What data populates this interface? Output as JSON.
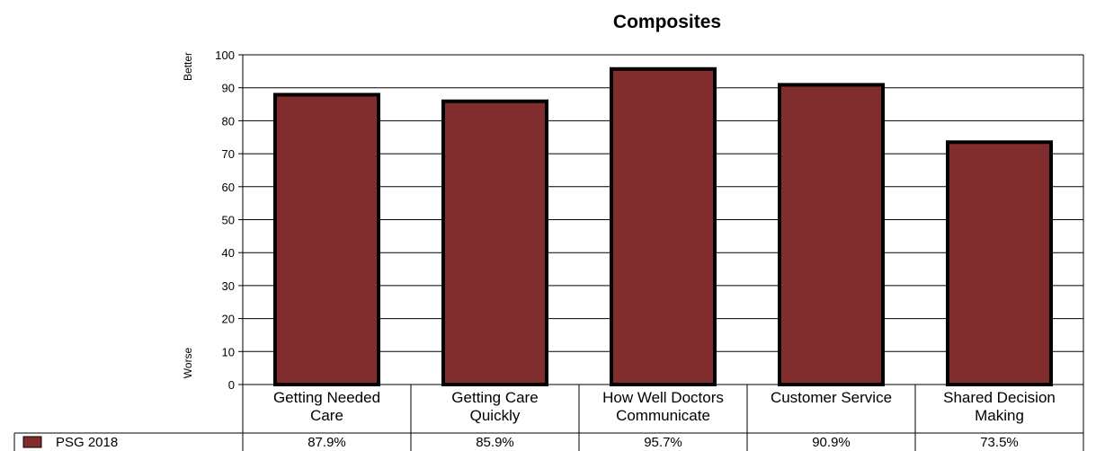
{
  "chart_data": {
    "type": "bar",
    "title": "Composites",
    "categories": [
      [
        "Getting Needed",
        "Care"
      ],
      [
        "Getting Care",
        "Quickly"
      ],
      [
        "How Well Doctors",
        "Communicate"
      ],
      [
        "Customer Service"
      ],
      [
        "Shared Decision",
        "Making"
      ]
    ],
    "series": [
      {
        "name": "PSG 2018",
        "color": "#822d2d",
        "values": [
          87.9,
          85.9,
          95.7,
          90.9,
          73.5
        ],
        "value_labels": [
          "87.9%",
          "85.9%",
          "95.7%",
          "90.9%",
          "73.5%"
        ]
      }
    ],
    "ylim": [
      0,
      100
    ],
    "yticks": [
      "0",
      "10",
      "20",
      "30",
      "40",
      "50",
      "60",
      "70",
      "80",
      "90",
      "100"
    ],
    "y_annotations": {
      "top": "Better",
      "bottom": "Worse"
    },
    "grid": true,
    "legend": "bottom-left data table"
  }
}
